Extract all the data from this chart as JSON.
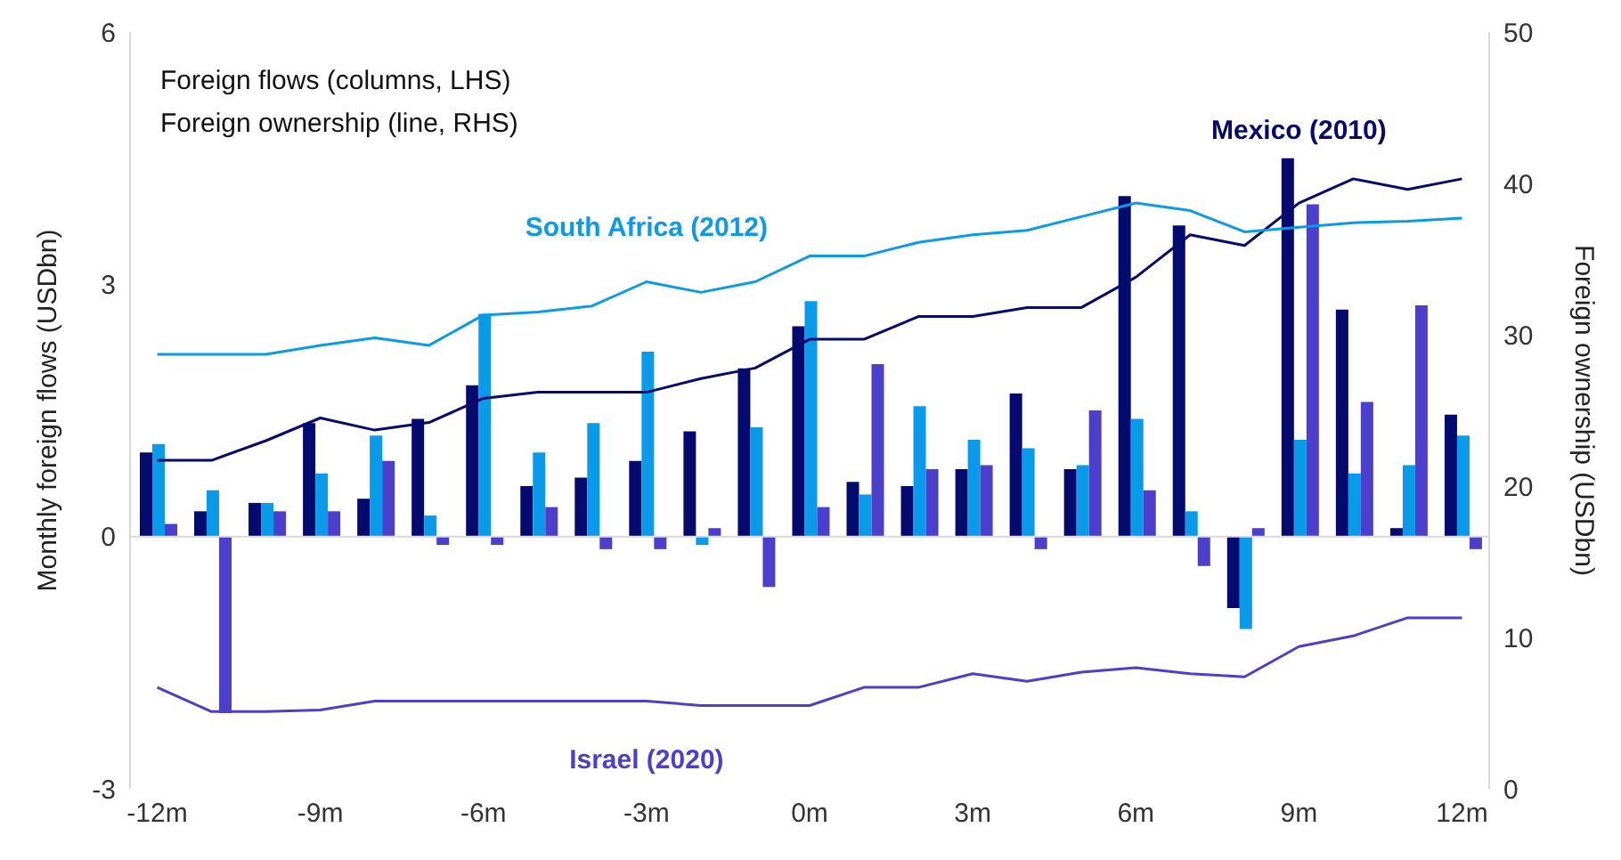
{
  "chart_data": {
    "type": "bar",
    "categories": [
      "-12m",
      null,
      null,
      "-9m",
      null,
      null,
      "-6m",
      null,
      null,
      "-3m",
      null,
      null,
      "0m",
      null,
      null,
      "3m",
      null,
      null,
      "6m",
      null,
      null,
      "9m",
      null,
      null,
      "12m"
    ],
    "ylabel": "Monthly foreign flows (USDbn)",
    "y2label": "Foreign ownership (USDbn)",
    "annotations": [
      "Foreign flows (columns, LHS)",
      "Foreign ownership (line, RHS)"
    ],
    "ylim": [
      -3,
      6
    ],
    "yticks": [
      -3,
      0,
      3,
      6
    ],
    "y2lim": [
      0,
      50
    ],
    "y2ticks": [
      0,
      10,
      20,
      30,
      40,
      50
    ],
    "grid": false,
    "legend": false,
    "ref_lines": [
      {
        "axis": "y",
        "value": 0,
        "color": "#d9d9d9"
      }
    ],
    "series": [
      {
        "color": "#050a6e",
        "values": [
          1.0,
          0.3,
          0.4,
          1.35,
          0.45,
          1.4,
          1.8,
          0.6,
          0.7,
          0.9,
          1.25,
          2.0,
          2.5,
          0.65,
          0.6,
          0.8,
          1.7,
          0.8,
          4.05,
          3.7,
          -0.85,
          4.5,
          2.7,
          0.1,
          1.45
        ]
      },
      {
        "color": "#0a9aea",
        "values": [
          1.1,
          0.55,
          0.4,
          0.75,
          1.2,
          0.25,
          2.65,
          1.0,
          1.35,
          2.2,
          -0.1,
          1.3,
          2.8,
          0.5,
          1.55,
          1.15,
          1.05,
          0.85,
          1.4,
          0.3,
          -1.1,
          1.15,
          0.75,
          0.85,
          1.2
        ]
      },
      {
        "color": "#4b3fcb",
        "values": [
          0.15,
          -2.1,
          0.3,
          0.3,
          0.9,
          -0.1,
          -0.1,
          0.35,
          -0.15,
          -0.15,
          0.1,
          -0.6,
          0.35,
          2.05,
          0.8,
          0.85,
          -0.15,
          1.5,
          0.55,
          -0.35,
          0.1,
          3.95,
          1.6,
          2.75,
          -0.15
        ]
      },
      {
        "type": "line",
        "axis": "y2",
        "name": "Mexico (2010)",
        "color": "#050a6e",
        "values": [
          21.7,
          21.7,
          23,
          24.5,
          23.7,
          24.2,
          25.8,
          26.2,
          26.2,
          26.2,
          27.1,
          27.8,
          29.7,
          29.7,
          31.2,
          31.2,
          31.8,
          31.8,
          33.8,
          36.6,
          35.9,
          38.7,
          40.3,
          39.6,
          40.3
        ]
      },
      {
        "type": "line",
        "axis": "y2",
        "name": "South Africa (2012)",
        "color": "#0a9aea",
        "values": [
          28.7,
          28.7,
          28.7,
          29.3,
          29.8,
          29.3,
          31.3,
          31.5,
          31.9,
          33.5,
          32.8,
          33.5,
          35.2,
          35.2,
          36.1,
          36.6,
          36.9,
          37.8,
          38.7,
          38.2,
          36.8,
          37.1,
          37.4,
          37.5,
          37.7
        ]
      },
      {
        "type": "line",
        "axis": "y2",
        "name": "Israel (2020)",
        "color": "#4b3fcb",
        "values": [
          6.7,
          5.1,
          5.1,
          5.2,
          5.8,
          5.8,
          5.8,
          5.8,
          5.8,
          5.8,
          5.5,
          5.5,
          5.5,
          6.7,
          6.7,
          7.6,
          7.1,
          7.7,
          8.0,
          7.6,
          7.4,
          9.4,
          10.1,
          11.3,
          11.3
        ]
      }
    ]
  }
}
